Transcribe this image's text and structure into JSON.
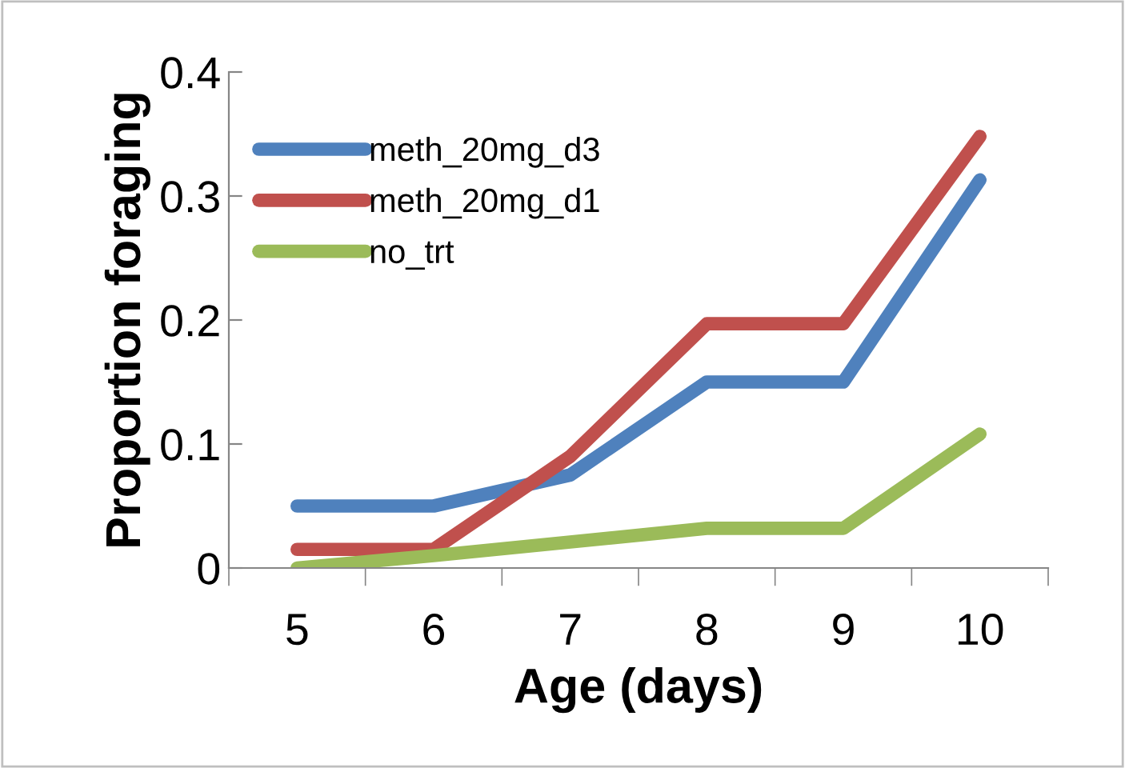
{
  "chart_data": {
    "type": "line",
    "xlabel": "Age (days)",
    "ylabel": "Proportion foraging",
    "categories": [
      "5",
      "6",
      "7",
      "8",
      "9",
      "10"
    ],
    "series": [
      {
        "name": "meth_20mg_d3",
        "color": "#4f81bd",
        "values": [
          0.05,
          0.05,
          0.075,
          0.15,
          0.15,
          0.313
        ]
      },
      {
        "name": "meth_20mg_d1",
        "color": "#c0504d",
        "values": [
          0.015,
          0.015,
          0.09,
          0.197,
          0.197,
          0.348
        ]
      },
      {
        "name": "no_trt",
        "color": "#9bbb59",
        "values": [
          0.0,
          0.01,
          0.021,
          0.032,
          0.032,
          0.108
        ]
      }
    ],
    "ylim": [
      0,
      0.4
    ],
    "yticks": [
      0,
      {
        "value": 0.1,
        "label": "0.1"
      },
      {
        "value": 0.2,
        "label": "0.2"
      },
      {
        "value": 0.3,
        "label": "0.3"
      },
      {
        "value": 0.4,
        "label": "0.4"
      }
    ],
    "grid": false,
    "legend": "top left",
    "marker": "none",
    "line_style": "solid"
  }
}
